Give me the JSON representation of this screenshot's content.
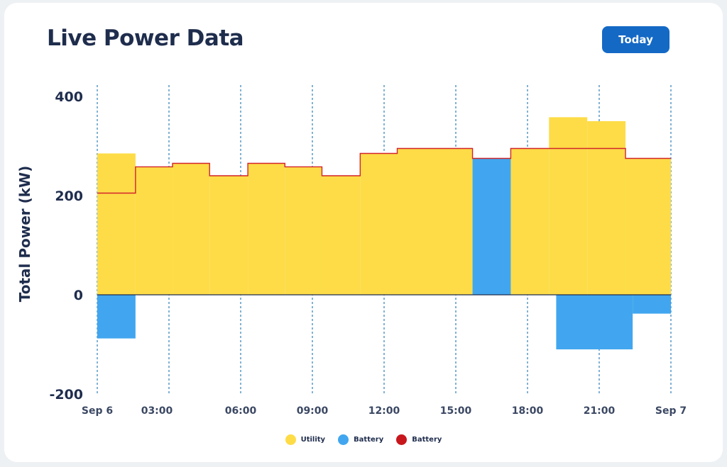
{
  "header": {
    "title": "Live Power Data",
    "today_label": "Today"
  },
  "colors": {
    "utility": "#fddc47",
    "battery": "#41a6ef",
    "battery_line": "#d2232a",
    "grid": "#2f7fb6",
    "text": "#1f2d4d"
  },
  "chart_data": {
    "type": "area",
    "ylabel": "Total Power (kW)",
    "ylim": [
      -200,
      400
    ],
    "yticks": [
      "400",
      "200",
      "0",
      "-200"
    ],
    "xlim_hours": [
      0,
      24
    ],
    "xticks": [
      {
        "hour": 0,
        "label": "Sep 6"
      },
      {
        "hour": 3,
        "label": "03:00"
      },
      {
        "hour": 6,
        "label": "06:00"
      },
      {
        "hour": 9,
        "label": "09:00"
      },
      {
        "hour": 12,
        "label": "12:00"
      },
      {
        "hour": 15,
        "label": "15:00"
      },
      {
        "hour": 18,
        "label": "18:00"
      },
      {
        "hour": 21,
        "label": "21:00"
      },
      {
        "hour": 24,
        "label": "Sep 7"
      }
    ],
    "grid": "vertical dashed",
    "series": [
      {
        "name": "Utility",
        "kind": "step-area",
        "steps": [
          {
            "start": 0.0,
            "end": 1.6,
            "value": 285
          },
          {
            "start": 1.6,
            "end": 3.15,
            "value": 258
          },
          {
            "start": 3.15,
            "end": 4.7,
            "value": 265
          },
          {
            "start": 4.7,
            "end": 6.3,
            "value": 240
          },
          {
            "start": 6.3,
            "end": 7.85,
            "value": 265
          },
          {
            "start": 7.85,
            "end": 9.4,
            "value": 258
          },
          {
            "start": 9.4,
            "end": 11.0,
            "value": 240
          },
          {
            "start": 11.0,
            "end": 12.55,
            "value": 285
          },
          {
            "start": 12.55,
            "end": 15.7,
            "value": 295
          },
          {
            "start": 15.7,
            "end": 17.3,
            "value": 0
          },
          {
            "start": 17.3,
            "end": 18.9,
            "value": 295
          },
          {
            "start": 18.9,
            "end": 20.5,
            "value": 358
          },
          {
            "start": 20.5,
            "end": 22.1,
            "value": 350
          },
          {
            "start": 22.1,
            "end": 24.0,
            "value": 275
          }
        ]
      },
      {
        "name": "Battery",
        "kind": "step-area",
        "steps": [
          {
            "start": 0.0,
            "end": 1.6,
            "value": -88
          },
          {
            "start": 15.7,
            "end": 17.3,
            "value": 275
          },
          {
            "start": 19.2,
            "end": 22.4,
            "value": -110
          },
          {
            "start": 22.4,
            "end": 24.0,
            "value": -38
          }
        ]
      },
      {
        "name": "Battery",
        "kind": "step-line",
        "steps": [
          {
            "start": 0.0,
            "end": 1.6,
            "value": 205
          },
          {
            "start": 1.6,
            "end": 3.15,
            "value": 258
          },
          {
            "start": 3.15,
            "end": 4.7,
            "value": 265
          },
          {
            "start": 4.7,
            "end": 6.3,
            "value": 240
          },
          {
            "start": 6.3,
            "end": 7.85,
            "value": 265
          },
          {
            "start": 7.85,
            "end": 9.4,
            "value": 258
          },
          {
            "start": 9.4,
            "end": 11.0,
            "value": 240
          },
          {
            "start": 11.0,
            "end": 12.55,
            "value": 285
          },
          {
            "start": 12.55,
            "end": 15.7,
            "value": 295
          },
          {
            "start": 15.7,
            "end": 17.3,
            "value": 275
          },
          {
            "start": 17.3,
            "end": 22.1,
            "value": 295
          },
          {
            "start": 22.1,
            "end": 24.0,
            "value": 275
          }
        ]
      }
    ],
    "legend": {
      "position": "bottom",
      "items": [
        {
          "label": "Utility",
          "color": "#fddc47"
        },
        {
          "label": "Battery",
          "color": "#41a6ef"
        },
        {
          "label": "Battery",
          "color": "#c8161d"
        }
      ]
    }
  }
}
